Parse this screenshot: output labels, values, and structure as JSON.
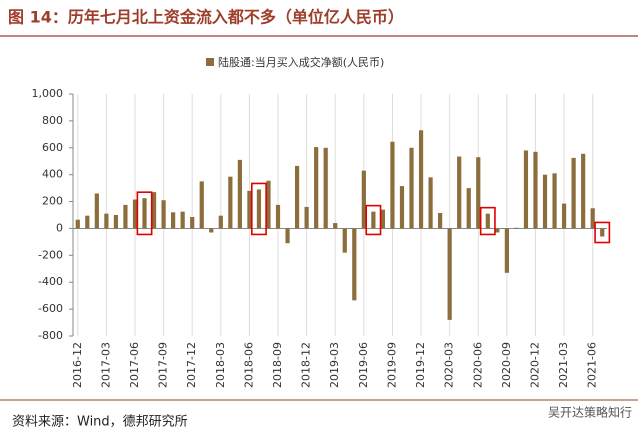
{
  "chart_data": {
    "type": "bar",
    "title": "图 14：历年七月北上资金流入都不多（单位亿人民币）",
    "legend": "陆股通:当月买入成交净额(人民币)",
    "source": "资料来源：Wind，德邦研究所",
    "watermark": "吴开达策略知行",
    "categories": [
      "2016-12",
      null,
      null,
      "2017-03",
      null,
      null,
      "2017-06",
      null,
      null,
      "2017-09",
      null,
      null,
      "2017-12",
      null,
      null,
      "2018-03",
      null,
      null,
      "2018-06",
      null,
      null,
      "2018-09",
      null,
      null,
      "2018-12",
      null,
      null,
      "2019-03",
      null,
      null,
      "2019-06",
      null,
      null,
      "2019-09",
      null,
      null,
      "2019-12",
      null,
      null,
      "2020-03",
      null,
      null,
      "2020-06",
      null,
      null,
      "2020-09",
      null,
      null,
      "2020-12",
      null,
      null,
      "2021-03",
      null,
      null,
      "2021-06",
      null
    ],
    "values": [
      65,
      95,
      260,
      110,
      100,
      175,
      215,
      225,
      270,
      210,
      120,
      125,
      85,
      350,
      -30,
      95,
      385,
      510,
      280,
      290,
      355,
      175,
      -110,
      465,
      160,
      605,
      600,
      40,
      -180,
      -535,
      430,
      125,
      140,
      645,
      315,
      600,
      730,
      380,
      115,
      -680,
      535,
      300,
      530,
      110,
      -30,
      -330,
      5,
      580,
      570,
      400,
      410,
      185,
      525,
      555,
      150,
      -60
    ],
    "color": "#8c6d3c",
    "highlight": [
      7,
      19,
      31,
      43,
      55
    ],
    "highlight_color": "#e00000",
    "ylim": [
      -800,
      1000
    ],
    "yticks": [
      -800,
      -600,
      -400,
      -200,
      0,
      200,
      400,
      600,
      800,
      {
        "value": 1000,
        "label": "1,000"
      }
    ],
    "grid": "x"
  }
}
